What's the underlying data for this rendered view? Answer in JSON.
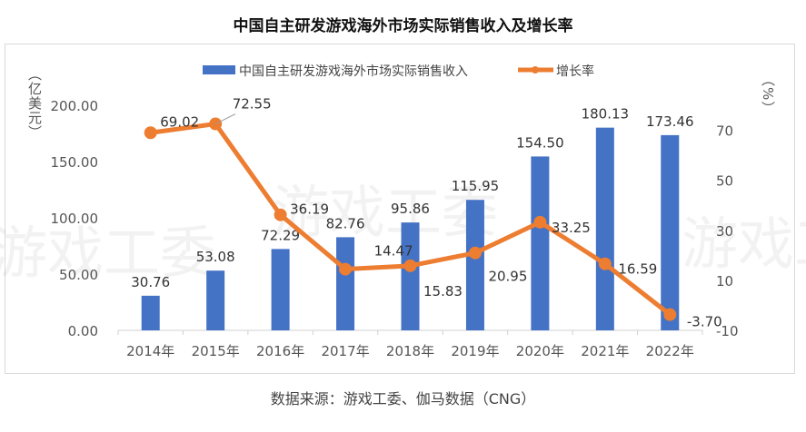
{
  "chart_data": {
    "type": "bar+line",
    "title": "中国自主研发游戏海外市场实际销售收入及增长率",
    "categories": [
      "2014年",
      "2015年",
      "2016年",
      "2017年",
      "2018年",
      "2019年",
      "2020年",
      "2021年",
      "2022年"
    ],
    "series": [
      {
        "name": "中国自主研发游戏海外市场实际销售收入",
        "type": "bar",
        "axis": "left",
        "color": "#4472C4",
        "values": [
          30.76,
          53.08,
          72.29,
          82.76,
          95.86,
          115.95,
          154.5,
          180.13,
          173.46
        ],
        "labels": [
          "30.76",
          "53.08",
          "72.29",
          "82.76",
          "95.86",
          "115.95",
          "154.50",
          "180.13",
          "173.46"
        ]
      },
      {
        "name": "增长率",
        "type": "line",
        "axis": "right",
        "color": "#ED7D31",
        "values": [
          69.02,
          72.55,
          36.19,
          14.47,
          15.83,
          20.95,
          33.25,
          16.59,
          -3.7
        ],
        "labels": [
          "69.02",
          "72.55",
          "36.19",
          "14.47",
          "15.83",
          "20.95",
          "33.25",
          "16.59",
          "-3.70"
        ]
      }
    ],
    "y_left": {
      "label": "（亿美元）",
      "range": [
        0,
        200
      ],
      "ticks": [
        "0.00",
        "50.00",
        "100.00",
        "150.00",
        "200.00"
      ]
    },
    "y_right": {
      "label": "（%）",
      "range": [
        -10,
        80
      ],
      "ticks": [
        "-10",
        "10",
        "30",
        "50",
        "70"
      ]
    },
    "legend": "top",
    "grid": false
  },
  "source": "数据来源：游戏工委、伽马数据（CNG）",
  "watermark": "游戏工委"
}
